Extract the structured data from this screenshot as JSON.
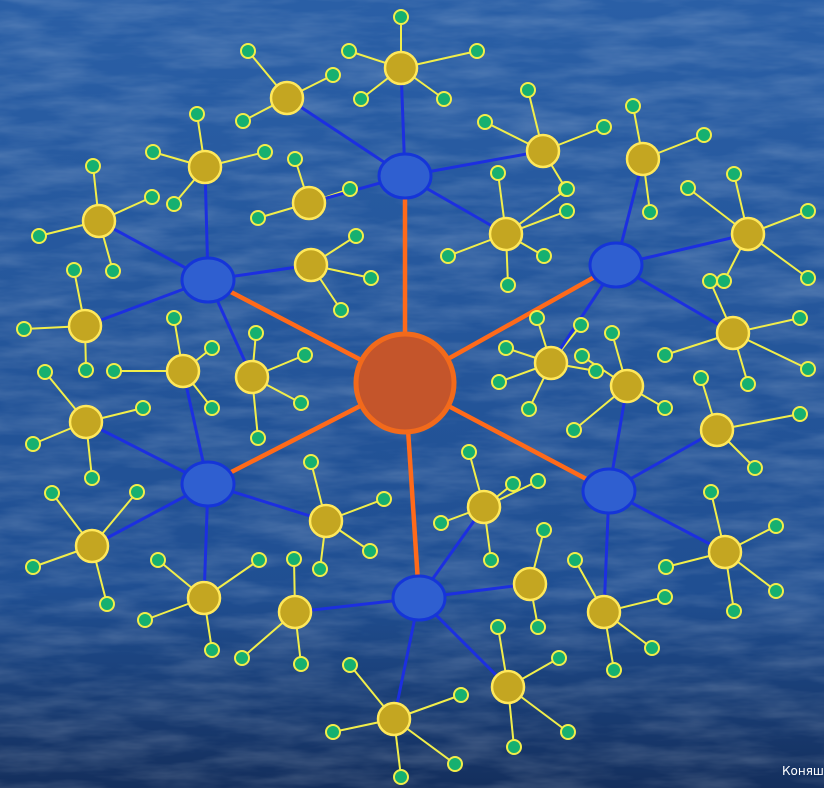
{
  "footer": {
    "author_text": "Коняш"
  },
  "colors": {
    "background_top": "#2a5fa6",
    "background_bottom": "#142f5d",
    "center_fill": "#c4552b",
    "center_stroke": "#f26a1b",
    "hub_fill": "#2f5fd0",
    "hub_stroke": "#1535d8",
    "hub_link": "#ff6a1a",
    "cluster_link": "#1c2fe0",
    "cluster_fill": "#c4a621",
    "cluster_stroke": "#ffe85a",
    "leaf_fill": "#16b070",
    "leaf_stroke": "#f2ee4a",
    "leaf_link": "#f2ee4a"
  },
  "diagram": {
    "center_node": {
      "shape": "circle"
    },
    "hub_nodes": [
      {
        "id": "hub-top"
      },
      {
        "id": "hub-upper-right"
      },
      {
        "id": "hub-lower-right"
      },
      {
        "id": "hub-bottom"
      },
      {
        "id": "hub-lower-left"
      },
      {
        "id": "hub-upper-left"
      }
    ],
    "cluster_count": 28,
    "leaf_count": 130
  }
}
